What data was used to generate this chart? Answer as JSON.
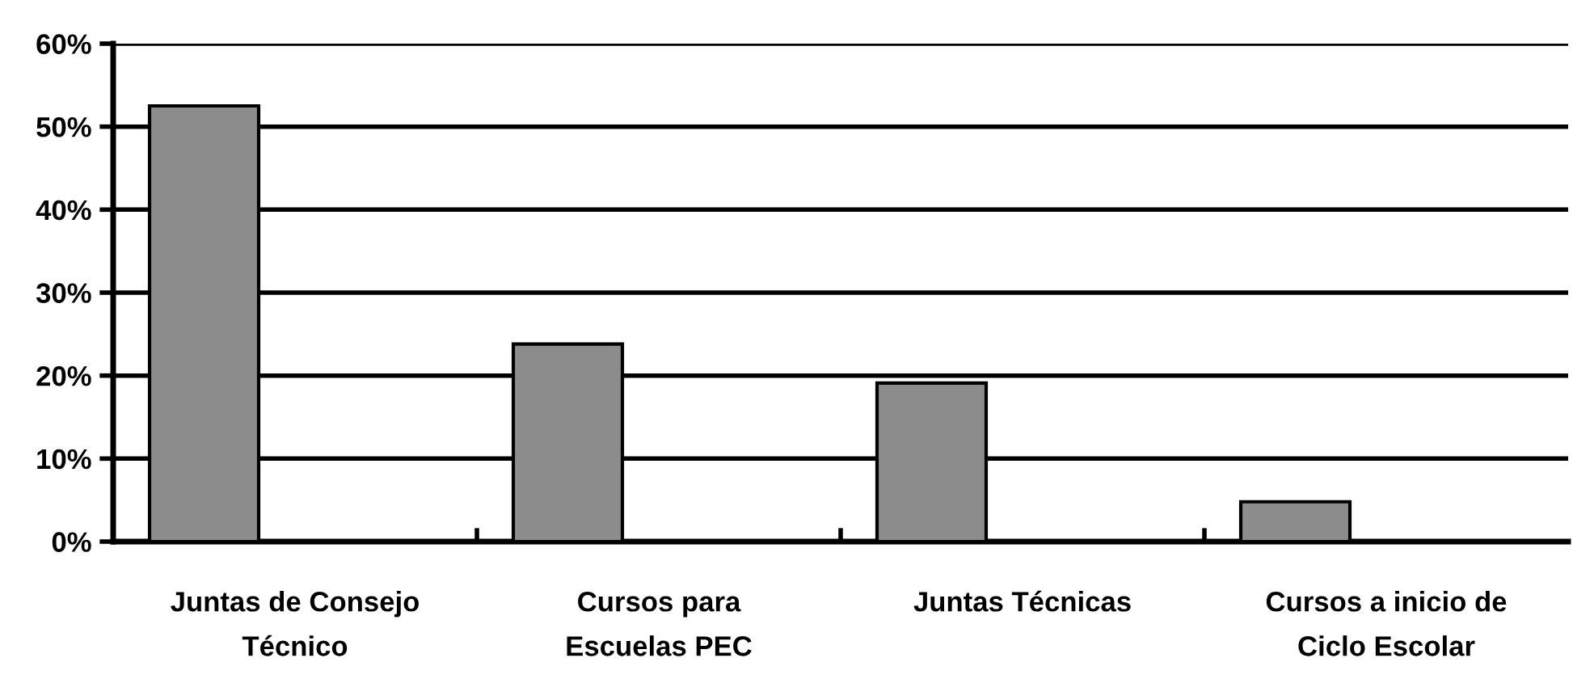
{
  "chart_data": {
    "type": "bar",
    "categories": [
      "Juntas de Consejo\nTécnico",
      "Cursos para\nEscuelas PEC",
      "Juntas Técnicas",
      "Cursos a inicio de\nCiclo Escolar"
    ],
    "values": [
      52.5,
      23.8,
      19.1,
      4.8
    ],
    "color": "#8c8c8c",
    "ylim": [
      0,
      60
    ],
    "yticks": [
      {
        "value": 0,
        "label": "0%"
      },
      {
        "value": 10,
        "label": "10%"
      },
      {
        "value": 20,
        "label": "20%"
      },
      {
        "value": 30,
        "label": "30%"
      },
      {
        "value": 40,
        "label": "40%"
      },
      {
        "value": 50,
        "label": "50%"
      },
      {
        "value": 60,
        "label": "60%"
      }
    ],
    "grid": "y",
    "legend": false
  }
}
